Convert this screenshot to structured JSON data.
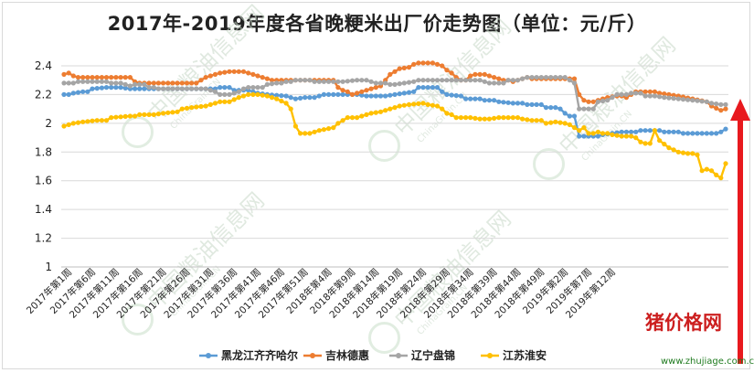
{
  "chart_data": {
    "type": "line",
    "title": "2017年-2019年度各省晚粳米出厂价走势图（单位：元/斤）",
    "ylim": [
      1,
      2.4
    ],
    "yticks": [
      "1",
      "1.2",
      "1.4",
      "1.6",
      "1.8",
      "2",
      "2.2",
      "2.4"
    ],
    "xtick_labels": [
      "2017年第1周",
      "2017年第6周",
      "2017年第11周",
      "2017年第16周",
      "2017年第21周",
      "2017年第26周",
      "2017年第31周",
      "2017年第36周",
      "2017年第41周",
      "2017年第46周",
      "2017年第51周",
      "2018年第4周",
      "2018年第9周",
      "2018年第14周",
      "2018年第19周",
      "2018年第24周",
      "2018年第29周",
      "2018年第34周",
      "2018年第39周",
      "2018年第44周",
      "2018年第49周",
      "2019年第2周",
      "2019年第7周",
      "2019年第12周"
    ],
    "n_points": 118,
    "grid": "horizontal",
    "legend_position": "bottom",
    "colors": {
      "黑龙江齐齐哈尔": "#5b9bd5",
      "吉林德惠": "#ed7d31",
      "辽宁盘锦": "#a5a5a5",
      "江苏淮安": "#ffc000"
    },
    "series": [
      {
        "name": "黑龙江齐齐哈尔",
        "anchors": [
          [
            0,
            2.2
          ],
          [
            1,
            2.2
          ],
          [
            2,
            2.21
          ],
          [
            4,
            2.22
          ],
          [
            5,
            2.22
          ],
          [
            6,
            2.24
          ],
          [
            9,
            2.25
          ],
          [
            12,
            2.25
          ],
          [
            14,
            2.24
          ],
          [
            16,
            2.24
          ],
          [
            32,
            2.24
          ],
          [
            33,
            2.25
          ],
          [
            35,
            2.25
          ],
          [
            36,
            2.23
          ],
          [
            39,
            2.23
          ],
          [
            41,
            2.21
          ],
          [
            43,
            2.2
          ],
          [
            47,
            2.19
          ],
          [
            49,
            2.17
          ],
          [
            51,
            2.18
          ],
          [
            53,
            2.18
          ],
          [
            55,
            2.2
          ],
          [
            62,
            2.2
          ],
          [
            64,
            2.19
          ],
          [
            68,
            2.19
          ],
          [
            70,
            2.2
          ],
          [
            72,
            2.21
          ],
          [
            74,
            2.22
          ],
          [
            75,
            2.25
          ],
          [
            79,
            2.25
          ],
          [
            80,
            2.22
          ],
          [
            81,
            2.2
          ],
          [
            84,
            2.19
          ],
          [
            85,
            2.17
          ],
          [
            88,
            2.17
          ],
          [
            89,
            2.16
          ],
          [
            91,
            2.16
          ],
          [
            92,
            2.15
          ],
          [
            95,
            2.14
          ],
          [
            97,
            2.14
          ],
          [
            98,
            2.13
          ],
          [
            101,
            2.13
          ],
          [
            102,
            2.11
          ],
          [
            104,
            2.11
          ],
          [
            105,
            2.1
          ],
          [
            106,
            2.07
          ],
          [
            107,
            2.05
          ],
          [
            108,
            2.05
          ],
          [
            109,
            1.91
          ],
          [
            113,
            1.91
          ],
          [
            114,
            1.92
          ],
          [
            116,
            1.93
          ],
          [
            118,
            1.94
          ],
          [
            121,
            1.94
          ],
          [
            122,
            1.95
          ],
          [
            126,
            1.95
          ],
          [
            127,
            1.94
          ],
          [
            130,
            1.94
          ],
          [
            131,
            1.93
          ],
          [
            138,
            1.93
          ],
          [
            139,
            1.94
          ],
          [
            140,
            1.96
          ]
        ]
      },
      {
        "name": "吉林德惠",
        "anchors": [
          [
            0,
            2.34
          ],
          [
            1,
            2.35
          ],
          [
            2,
            2.33
          ],
          [
            3,
            2.32
          ],
          [
            14,
            2.32
          ],
          [
            15,
            2.29
          ],
          [
            16,
            2.28
          ],
          [
            28,
            2.28
          ],
          [
            30,
            2.32
          ],
          [
            32,
            2.34
          ],
          [
            33,
            2.35
          ],
          [
            35,
            2.36
          ],
          [
            38,
            2.36
          ],
          [
            39,
            2.35
          ],
          [
            40,
            2.34
          ],
          [
            41,
            2.33
          ],
          [
            42,
            2.32
          ],
          [
            43,
            2.31
          ],
          [
            44,
            2.3
          ],
          [
            57,
            2.3
          ],
          [
            58,
            2.25
          ],
          [
            59,
            2.23
          ],
          [
            60,
            2.22
          ],
          [
            61,
            2.2
          ],
          [
            62,
            2.21
          ],
          [
            63,
            2.22
          ],
          [
            64,
            2.23
          ],
          [
            65,
            2.24
          ],
          [
            66,
            2.25
          ],
          [
            67,
            2.26
          ],
          [
            68,
            2.3
          ],
          [
            69,
            2.34
          ],
          [
            70,
            2.36
          ],
          [
            71,
            2.38
          ],
          [
            73,
            2.39
          ],
          [
            74,
            2.41
          ],
          [
            75,
            2.42
          ],
          [
            76,
            2.42
          ],
          [
            78,
            2.42
          ],
          [
            79,
            2.41
          ],
          [
            80,
            2.4
          ],
          [
            81,
            2.37
          ],
          [
            82,
            2.35
          ],
          [
            83,
            2.32
          ],
          [
            84,
            2.3
          ],
          [
            85,
            2.3
          ],
          [
            86,
            2.33
          ],
          [
            87,
            2.34
          ],
          [
            89,
            2.34
          ],
          [
            90,
            2.33
          ],
          [
            91,
            2.32
          ],
          [
            92,
            2.31
          ],
          [
            93,
            2.3
          ],
          [
            94,
            2.3
          ],
          [
            95,
            2.29
          ],
          [
            96,
            2.3
          ],
          [
            97,
            2.31
          ],
          [
            98,
            2.32
          ],
          [
            99,
            2.31
          ],
          [
            108,
            2.31
          ],
          [
            109,
            2.2
          ],
          [
            110,
            2.16
          ],
          [
            111,
            2.15
          ],
          [
            112,
            2.15
          ],
          [
            113,
            2.16
          ],
          [
            115,
            2.18
          ],
          [
            117,
            2.19
          ],
          [
            118,
            2.19
          ],
          [
            119,
            2.18
          ],
          [
            120,
            2.2
          ],
          [
            121,
            2.22
          ],
          [
            125,
            2.22
          ],
          [
            126,
            2.21
          ],
          [
            128,
            2.2
          ],
          [
            130,
            2.19
          ],
          [
            133,
            2.17
          ],
          [
            136,
            2.15
          ],
          [
            137,
            2.12
          ],
          [
            139,
            2.09
          ],
          [
            140,
            2.1
          ]
        ]
      },
      {
        "name": "辽宁盘锦",
        "anchors": [
          [
            0,
            2.28
          ],
          [
            2,
            2.28
          ],
          [
            3,
            2.29
          ],
          [
            9,
            2.29
          ],
          [
            10,
            2.28
          ],
          [
            12,
            2.28
          ],
          [
            13,
            2.27
          ],
          [
            14,
            2.26
          ],
          [
            15,
            2.27
          ],
          [
            17,
            2.27
          ],
          [
            18,
            2.25
          ],
          [
            19,
            2.25
          ],
          [
            20,
            2.24
          ],
          [
            30,
            2.24
          ],
          [
            31,
            2.23
          ],
          [
            32,
            2.22
          ],
          [
            33,
            2.2
          ],
          [
            35,
            2.2
          ],
          [
            36,
            2.21
          ],
          [
            37,
            2.22
          ],
          [
            38,
            2.24
          ],
          [
            39,
            2.25
          ],
          [
            42,
            2.25
          ],
          [
            43,
            2.27
          ],
          [
            45,
            2.28
          ],
          [
            46,
            2.28
          ],
          [
            47,
            2.29
          ],
          [
            48,
            2.29
          ],
          [
            49,
            2.3
          ],
          [
            52,
            2.3
          ],
          [
            53,
            2.29
          ],
          [
            57,
            2.29
          ],
          [
            59,
            2.29
          ],
          [
            62,
            2.3
          ],
          [
            64,
            2.3
          ],
          [
            66,
            2.28
          ],
          [
            68,
            2.28
          ],
          [
            69,
            2.27
          ],
          [
            70,
            2.27
          ],
          [
            72,
            2.28
          ],
          [
            74,
            2.29
          ],
          [
            75,
            2.3
          ],
          [
            84,
            2.3
          ],
          [
            86,
            2.3
          ],
          [
            88,
            2.3
          ],
          [
            89,
            2.29
          ],
          [
            90,
            2.28
          ],
          [
            93,
            2.28
          ],
          [
            94,
            2.3
          ],
          [
            96,
            2.3
          ],
          [
            97,
            2.31
          ],
          [
            98,
            2.32
          ],
          [
            106,
            2.32
          ],
          [
            107,
            2.3
          ],
          [
            108,
            2.28
          ],
          [
            109,
            2.1
          ],
          [
            112,
            2.1
          ],
          [
            113,
            2.15
          ],
          [
            115,
            2.16
          ],
          [
            117,
            2.2
          ],
          [
            119,
            2.2
          ],
          [
            120,
            2.21
          ],
          [
            122,
            2.21
          ],
          [
            123,
            2.19
          ],
          [
            125,
            2.19
          ],
          [
            127,
            2.18
          ],
          [
            130,
            2.17
          ],
          [
            133,
            2.16
          ],
          [
            136,
            2.15
          ],
          [
            137,
            2.14
          ],
          [
            139,
            2.13
          ],
          [
            140,
            2.13
          ]
        ]
      },
      {
        "name": "江苏淮安",
        "anchors": [
          [
            0,
            1.98
          ],
          [
            1,
            1.99
          ],
          [
            2,
            2.0
          ],
          [
            4,
            2.01
          ],
          [
            7,
            2.02
          ],
          [
            9,
            2.02
          ],
          [
            10,
            2.04
          ],
          [
            14,
            2.05
          ],
          [
            15,
            2.05
          ],
          [
            16,
            2.06
          ],
          [
            19,
            2.06
          ],
          [
            21,
            2.07
          ],
          [
            24,
            2.08
          ],
          [
            25,
            2.1
          ],
          [
            27,
            2.11
          ],
          [
            30,
            2.12
          ],
          [
            32,
            2.14
          ],
          [
            33,
            2.15
          ],
          [
            35,
            2.15
          ],
          [
            37,
            2.18
          ],
          [
            39,
            2.2
          ],
          [
            41,
            2.2
          ],
          [
            43,
            2.19
          ],
          [
            45,
            2.17
          ],
          [
            47,
            2.14
          ],
          [
            48,
            2.1
          ],
          [
            49,
            1.98
          ],
          [
            50,
            1.93
          ],
          [
            52,
            1.93
          ],
          [
            54,
            1.95
          ],
          [
            57,
            1.97
          ],
          [
            58,
            2.0
          ],
          [
            60,
            2.04
          ],
          [
            62,
            2.04
          ],
          [
            63,
            2.05
          ],
          [
            65,
            2.07
          ],
          [
            67,
            2.08
          ],
          [
            69,
            2.1
          ],
          [
            71,
            2.12
          ],
          [
            73,
            2.13
          ],
          [
            76,
            2.14
          ],
          [
            77,
            2.13
          ],
          [
            79,
            2.12
          ],
          [
            80,
            2.1
          ],
          [
            81,
            2.07
          ],
          [
            82,
            2.06
          ],
          [
            83,
            2.04
          ],
          [
            85,
            2.04
          ],
          [
            86,
            2.04
          ],
          [
            88,
            2.03
          ],
          [
            90,
            2.03
          ],
          [
            92,
            2.04
          ],
          [
            96,
            2.04
          ],
          [
            97,
            2.03
          ],
          [
            99,
            2.02
          ],
          [
            101,
            2.02
          ],
          [
            102,
            2.0
          ],
          [
            104,
            2.01
          ],
          [
            106,
            2.0
          ],
          [
            107,
            1.99
          ],
          [
            108,
            1.97
          ],
          [
            109,
            1.95
          ],
          [
            110,
            1.97
          ],
          [
            111,
            1.93
          ],
          [
            112,
            1.93
          ],
          [
            113,
            1.94
          ],
          [
            114,
            1.93
          ],
          [
            115,
            1.93
          ],
          [
            116,
            1.92
          ],
          [
            118,
            1.91
          ],
          [
            120,
            1.91
          ],
          [
            121,
            1.9
          ],
          [
            122,
            1.87
          ],
          [
            123,
            1.86
          ],
          [
            124,
            1.86
          ],
          [
            125,
            1.95
          ],
          [
            126,
            1.88
          ],
          [
            128,
            1.83
          ],
          [
            130,
            1.8
          ],
          [
            132,
            1.79
          ],
          [
            133,
            1.79
          ],
          [
            134,
            1.78
          ],
          [
            135,
            1.67
          ],
          [
            136,
            1.68
          ],
          [
            137,
            1.67
          ],
          [
            138,
            1.64
          ],
          [
            139,
            1.62
          ],
          [
            140,
            1.72
          ]
        ]
      }
    ]
  },
  "watermark": {
    "site": "中国粮油信息网",
    "domain": "ChinaGrain.CN"
  },
  "logo": {
    "name": "猪价格网",
    "url": "www.zhujiage.com.cn"
  }
}
